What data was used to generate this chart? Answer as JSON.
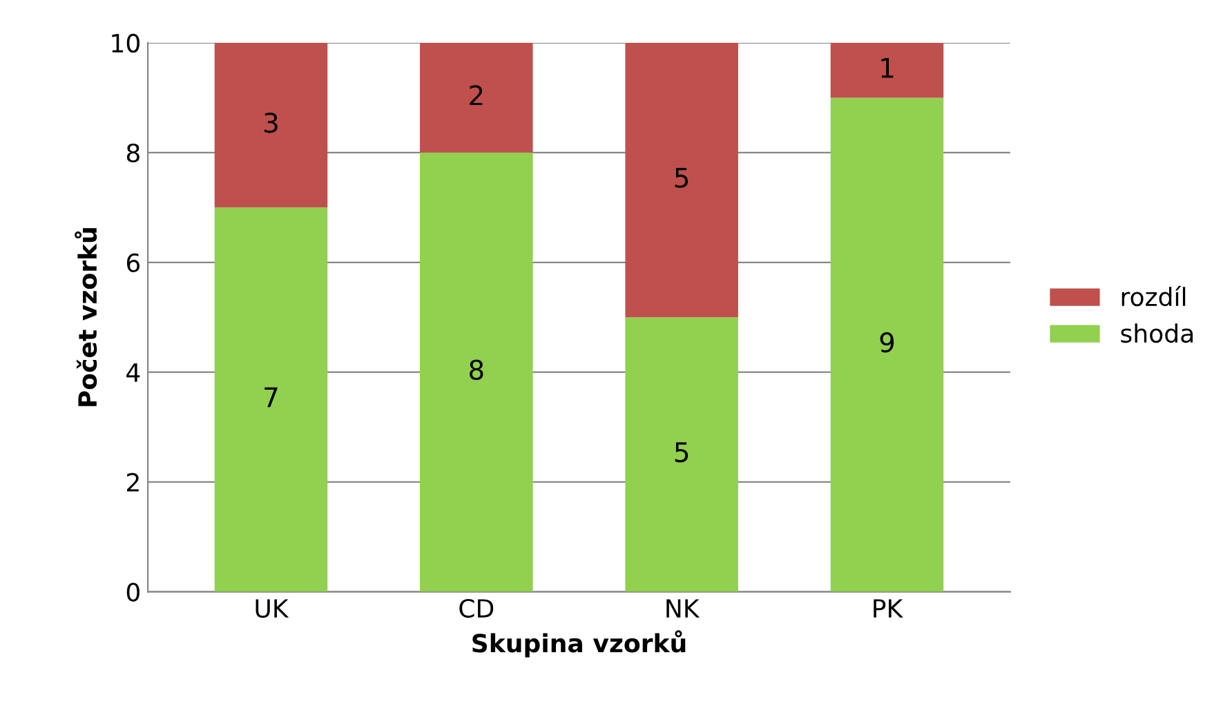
{
  "chart_data": {
    "type": "bar",
    "stacked": true,
    "xlabel": "Skupina vzorků",
    "ylabel": "Počet vzorků",
    "categories": [
      "UK",
      "CD",
      "NK",
      "PK"
    ],
    "series": [
      {
        "name": "shoda",
        "color": "#92d050",
        "values": [
          7,
          8,
          5,
          9
        ]
      },
      {
        "name": "rozdíl",
        "color": "#c0504d",
        "values": [
          3,
          2,
          5,
          1
        ]
      }
    ],
    "ylim": [
      0,
      10
    ],
    "yticks": [
      0,
      2,
      4,
      6,
      8,
      10
    ],
    "grid": "y",
    "legend": "right",
    "data_labels": true
  }
}
